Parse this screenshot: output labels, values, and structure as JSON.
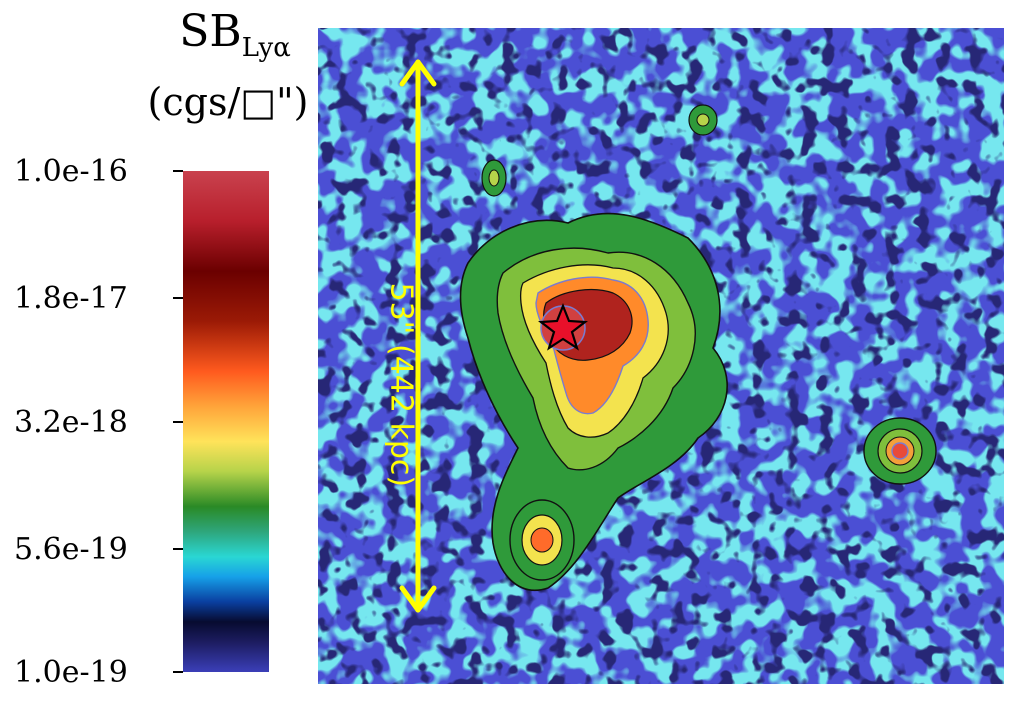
{
  "colorbar": {
    "title_main": "SB",
    "title_sub": "Lyα",
    "units": "(cgs/□\")",
    "tick_labels": [
      "1.0e-16",
      "1.8e-17",
      "3.2e-18",
      "5.6e-19",
      "1.0e-19"
    ]
  },
  "image": {
    "scale_label": "53\" (442 kpc)"
  },
  "colors": {
    "background": "#4b4fd4",
    "scale_arrow": "#ffff00",
    "marker_star": "#e8102a"
  }
}
